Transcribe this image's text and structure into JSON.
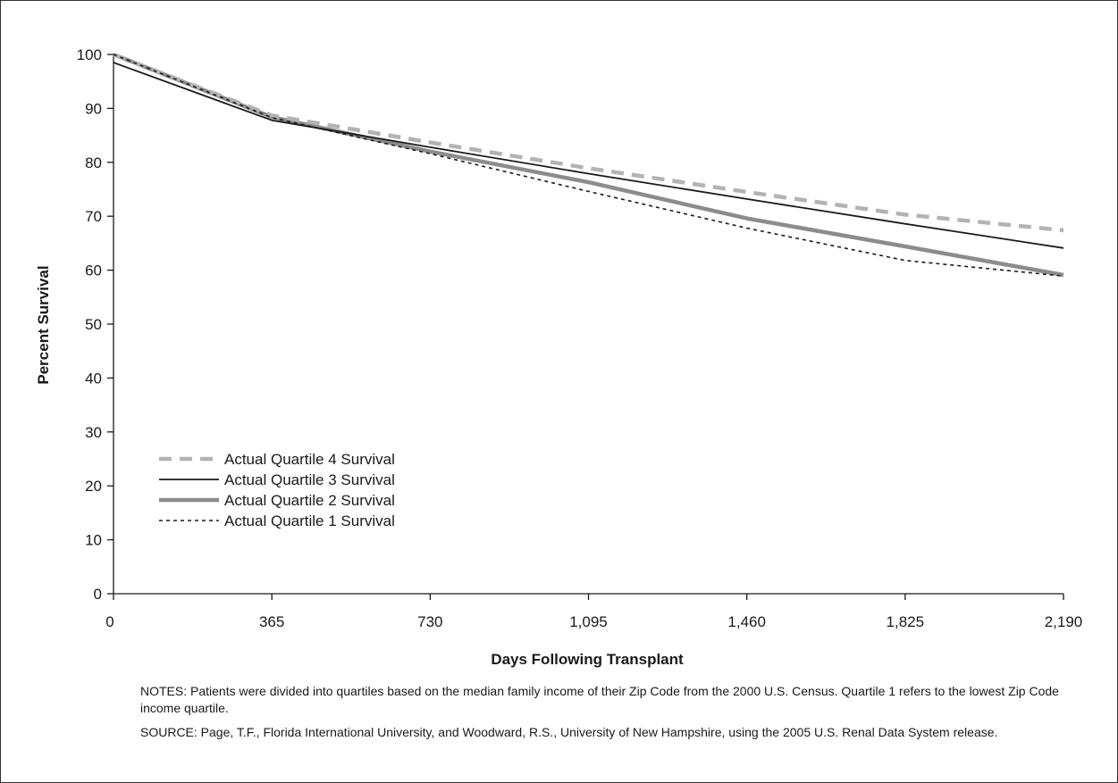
{
  "chart_data": {
    "type": "line",
    "xlabel": "Days Following Transplant",
    "ylabel": "Percent Survival",
    "xlim": [
      0,
      2190
    ],
    "ylim": [
      0,
      100
    ],
    "x_ticks": [
      0,
      365,
      730,
      1095,
      1460,
      1825,
      2190
    ],
    "x_tick_labels": [
      "0",
      "365",
      "730",
      "1,095",
      "1,460",
      "1,825",
      "2,190"
    ],
    "y_ticks": [
      0,
      10,
      20,
      30,
      40,
      50,
      60,
      70,
      80,
      90,
      100
    ],
    "y_tick_labels": [
      "0",
      "10",
      "20",
      "30",
      "40",
      "50",
      "60",
      "70",
      "80",
      "90",
      "100"
    ],
    "grid": false,
    "legend_position": "bottom-left",
    "series": [
      {
        "name": "Actual Quartile 4 Survival",
        "style": "dashed-gray-thick",
        "color": "#b3b3b3",
        "points": [
          [
            0,
            100
          ],
          [
            365,
            88.7
          ],
          [
            730,
            83.7
          ],
          [
            1095,
            78.9
          ],
          [
            1460,
            74.5
          ],
          [
            1825,
            70.3
          ],
          [
            2190,
            67.4
          ]
        ]
      },
      {
        "name": "Actual Quartile 3 Survival",
        "style": "solid-black-thin",
        "color": "#1a1a1a",
        "points": [
          [
            0,
            98.5
          ],
          [
            365,
            87.8
          ],
          [
            730,
            82.8
          ],
          [
            1095,
            77.9
          ],
          [
            1460,
            73.2
          ],
          [
            1825,
            68.6
          ],
          [
            2190,
            64.1
          ]
        ]
      },
      {
        "name": "Actual Quartile 2 Survival",
        "style": "solid-gray-thick",
        "color": "#8c8c8c",
        "points": [
          [
            0,
            100
          ],
          [
            365,
            88.4
          ],
          [
            730,
            82.0
          ],
          [
            1095,
            76.3
          ],
          [
            1460,
            69.6
          ],
          [
            1825,
            64.4
          ],
          [
            2190,
            59.1
          ]
        ]
      },
      {
        "name": "Actual Quartile 1 Survival",
        "style": "dashed-black-thin",
        "color": "#1a1a1a",
        "points": [
          [
            0,
            100
          ],
          [
            365,
            88.3
          ],
          [
            730,
            81.6
          ],
          [
            1095,
            74.6
          ],
          [
            1460,
            67.8
          ],
          [
            1825,
            61.8
          ],
          [
            2190,
            58.9
          ]
        ]
      }
    ]
  },
  "notes": {
    "notes_text": "NOTES: Patients were divided into quartiles based on the median family income of their Zip Code from the 2000 U.S. Census. Quartile 1 refers to the lowest Zip Code  income quartile.",
    "source_text": "SOURCE: Page, T.F., Florida International University, and Woodward, R.S., University of New Hampshire, using the 2005 U.S. Renal Data System release."
  }
}
